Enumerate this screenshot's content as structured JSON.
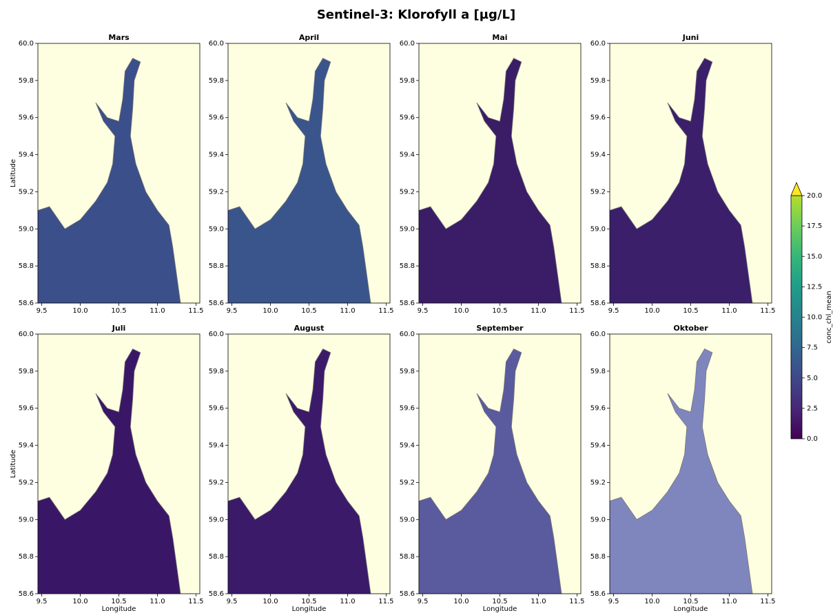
{
  "chart_data": {
    "type": "map",
    "title": "Sentinel-3: Klorofyll a [µg/L]",
    "xlabel": "Longitude",
    "ylabel": "Latitude",
    "xlim": [
      9.45,
      11.55
    ],
    "xticks": [
      9.5,
      {
        "value": 10.0,
        "label": "10.0"
      },
      10.5,
      {
        "value": 11.0,
        "label": "11.0"
      },
      11.5
    ],
    "ylim": [
      58.6,
      60.0
    ],
    "yticks": [
      58.6,
      58.8,
      {
        "value": 59.0,
        "label": "59.0"
      },
      59.2,
      59.4,
      59.6,
      59.8,
      {
        "value": 60.0,
        "label": "60.0"
      }
    ],
    "panels": [
      {
        "title": "Mars",
        "color": "#3b4f8a"
      },
      {
        "title": "April",
        "color": "#39558c"
      },
      {
        "title": "Mai",
        "color": "#3a1d66"
      },
      {
        "title": "Juni",
        "color": "#3b1f6b"
      },
      {
        "title": "Juli",
        "color": "#3a1766"
      },
      {
        "title": "August",
        "color": "#3b1a6a"
      },
      {
        "title": "September",
        "color": "#5a5a9e"
      },
      {
        "title": "Oktober",
        "color": "#7f86bd"
      }
    ],
    "colorbar": {
      "label": "conc_chl_mean",
      "lim": [
        0,
        20
      ],
      "ticks": [
        {
          "value": 0,
          "label": "0.0"
        },
        2.5,
        {
          "value": 5,
          "label": "5.0"
        },
        7.5,
        {
          "value": 10,
          "label": "10.0"
        },
        12.5,
        {
          "value": 15,
          "label": "15.0"
        },
        17.5,
        {
          "value": 20,
          "label": "20.0"
        }
      ],
      "extend": "max"
    }
  }
}
